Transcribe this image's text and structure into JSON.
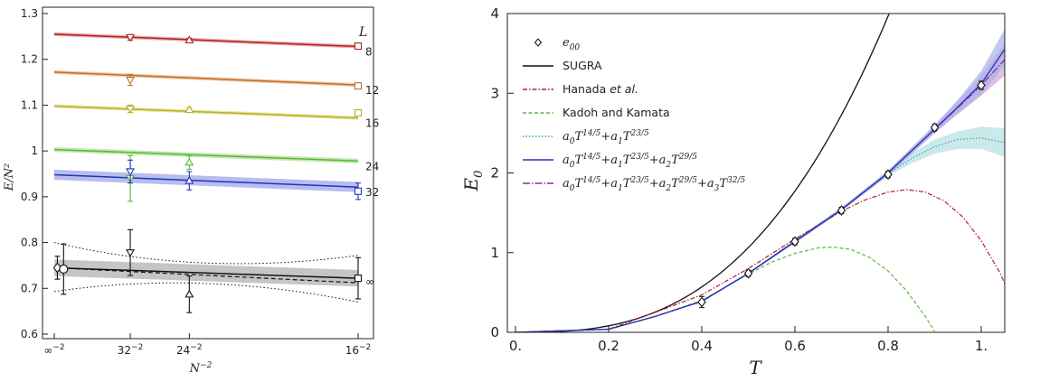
{
  "chart_data": [
    {
      "type": "line",
      "panel": "left",
      "title": "",
      "xlabel": "N−2",
      "ylabel": "E/N²",
      "xlim": [
        0,
        0.0039
      ],
      "ylim": [
        0.6,
        1.3
      ],
      "grid": false,
      "x_ticks": [
        {
          "value": 0,
          "base": "∞",
          "exp": "−2"
        },
        {
          "value": 0.000977,
          "base": "32",
          "exp": "−2"
        },
        {
          "value": 0.001736,
          "base": "24",
          "exp": "−2"
        },
        {
          "value": 0.003906,
          "base": "16",
          "exp": "−2"
        }
      ],
      "y_ticks": [
        {
          "value": 0.6,
          "label": "0.6"
        },
        {
          "value": 0.7,
          "label": "0.7"
        },
        {
          "value": 0.8,
          "label": "0.8"
        },
        {
          "value": 0.9,
          "label": "0.9"
        },
        {
          "value": 1.0,
          "label": "1"
        },
        {
          "value": 1.1,
          "label": "1.1"
        },
        {
          "value": 1.2,
          "label": "1.2"
        },
        {
          "value": 1.3,
          "label": "1.3"
        }
      ],
      "legend_title": "L",
      "series": [
        {
          "name": "8",
          "color": "#b22222",
          "band": "#e8a0a0",
          "fit": [
            1.255,
            1.228
          ],
          "halfwidth": 0.004,
          "points": [
            {
              "x": 0.000977,
              "y": 1.248,
              "err": 0.006,
              "marker": "tri-down"
            },
            {
              "x": 0.001736,
              "y": 1.242,
              "err": 0.004,
              "marker": "tri-up"
            },
            {
              "x": 0.003906,
              "y": 1.229,
              "err": 0.005,
              "marker": "square"
            }
          ]
        },
        {
          "name": "12",
          "color": "#c0702a",
          "band": "#efc09a",
          "fit": [
            1.172,
            1.144
          ],
          "halfwidth": 0.004,
          "points": [
            {
              "x": 0.000977,
              "y": 1.155,
              "err": 0.012,
              "marker": "tri-down"
            },
            {
              "x": 0.003906,
              "y": 1.142,
              "err": 0.006,
              "marker": "square"
            }
          ]
        },
        {
          "name": "16",
          "color": "#b5b025",
          "band": "#e6e39a",
          "fit": [
            1.098,
            1.072
          ],
          "halfwidth": 0.004,
          "points": [
            {
              "x": 0.000977,
              "y": 1.092,
              "err": 0.008,
              "marker": "tri-down"
            },
            {
              "x": 0.001736,
              "y": 1.09,
              "err": 0.005,
              "marker": "tri-up"
            },
            {
              "x": 0.003906,
              "y": 1.083,
              "err": 0.006,
              "marker": "square"
            }
          ]
        },
        {
          "name": "24",
          "color": "#5cb83a",
          "band": "#b8e4a0",
          "fit": [
            1.003,
            0.978
          ],
          "halfwidth": 0.005,
          "points": [
            {
              "x": 0.000977,
              "y": 0.94,
              "err": 0.05,
              "marker": "tri-down"
            },
            {
              "x": 0.001736,
              "y": 0.975,
              "err": 0.015,
              "marker": "tri-up"
            }
          ]
        },
        {
          "name": "32",
          "color": "#2233bb",
          "band": "#aab2ea",
          "fit": [
            0.948,
            0.921
          ],
          "halfwidth": 0.011,
          "points": [
            {
              "x": 0.000977,
              "y": 0.955,
              "err": 0.025,
              "marker": "tri-down"
            },
            {
              "x": 0.001736,
              "y": 0.935,
              "err": 0.02,
              "marker": "tri-up"
            },
            {
              "x": 0.003906,
              "y": 0.912,
              "err": 0.018,
              "marker": "square"
            }
          ]
        },
        {
          "name": "∞",
          "color": "#111111",
          "band": "#bbbbbb",
          "fit": [
            0.745,
            0.722
          ],
          "halfwidth": 0.018,
          "dashed_fit": [
            0.745,
            0.712
          ],
          "dotted_upper": [
            0.8,
            0.745,
            0.772
          ],
          "dotted_lower": [
            0.693,
            0.72,
            0.67
          ],
          "points": [
            {
              "x": 0.000977,
              "y": 0.778,
              "err": 0.05,
              "marker": "tri-down"
            },
            {
              "x": 0.001736,
              "y": 0.687,
              "err": 0.04,
              "marker": "tri-up"
            },
            {
              "x": 0.003906,
              "y": 0.722,
              "err": 0.045,
              "marker": "square"
            },
            {
              "x": 4e-05,
              "y": 0.745,
              "err": 0.025,
              "marker": "diamond"
            },
            {
              "x": 0.00012,
              "y": 0.742,
              "err": 0.055,
              "marker": "circle"
            }
          ]
        }
      ]
    },
    {
      "type": "line",
      "panel": "right",
      "title": "",
      "xlabel": "T",
      "ylabel": "E",
      "ylabel_sub": "0",
      "xlim": [
        0,
        1.1
      ],
      "ylim": [
        0,
        4
      ],
      "grid": false,
      "legend_position": "top-left",
      "x_ticks": [
        {
          "value": 0,
          "label": "0."
        },
        {
          "value": 0.2,
          "label": "0.2"
        },
        {
          "value": 0.4,
          "label": "0.4"
        },
        {
          "value": 0.6,
          "label": "0.6"
        },
        {
          "value": 0.8,
          "label": "0.8"
        },
        {
          "value": 1.0,
          "label": "1."
        }
      ],
      "y_ticks": [
        {
          "value": 0,
          "label": "0"
        },
        {
          "value": 1,
          "label": "1"
        },
        {
          "value": 2,
          "label": "2"
        },
        {
          "value": 3,
          "label": "3"
        },
        {
          "value": 4,
          "label": "4"
        }
      ],
      "legend": [
        {
          "key": "e00",
          "label": "e",
          "sub": "00",
          "style": "marker-diamond",
          "color": "#111111"
        },
        {
          "key": "sugra",
          "label": "SUGRA",
          "style": "solid",
          "color": "#111111"
        },
        {
          "key": "hanada",
          "label": "Hanada ",
          "label_italic": "et al.",
          "style": "dashdot",
          "color": "#b22222"
        },
        {
          "key": "kadoh",
          "label": "Kadoh and Kamata",
          "style": "dashed",
          "color": "#5cb83a"
        },
        {
          "key": "fit2",
          "terms": [
            [
              "a",
              "0",
              "14/5"
            ],
            [
              "a",
              "1",
              "23/5"
            ]
          ],
          "style": "dotted",
          "color": "#4aa0a8"
        },
        {
          "key": "fit3",
          "terms": [
            [
              "a",
              "0",
              "14/5"
            ],
            [
              "a",
              "1",
              "23/5"
            ],
            [
              "a",
              "2",
              "29/5"
            ]
          ],
          "style": "solid",
          "color": "#2233bb"
        },
        {
          "key": "fit4",
          "terms": [
            [
              "a",
              "0",
              "14/5"
            ],
            [
              "a",
              "1",
              "23/5"
            ],
            [
              "a",
              "2",
              "29/5"
            ],
            [
              "a",
              "3",
              "32/5"
            ]
          ],
          "style": "longdash",
          "color": "#8a2f9a"
        }
      ],
      "data_points": [
        {
          "T": 0.4,
          "E": 0.38,
          "err": 0.07
        },
        {
          "T": 0.5,
          "E": 0.74,
          "err": 0.04
        },
        {
          "T": 0.6,
          "E": 1.14,
          "err": 0.04
        },
        {
          "T": 0.7,
          "E": 1.53,
          "err": 0.04
        },
        {
          "T": 0.8,
          "E": 1.98,
          "err": 0.04
        },
        {
          "T": 0.9,
          "E": 2.57,
          "err": 0.04
        },
        {
          "T": 1.0,
          "E": 3.1,
          "err": 0.05
        }
      ],
      "curves": {
        "sugra": {
          "model": "power",
          "coef": 7.41,
          "exp": 2.8
        },
        "fit2": {
          "T": [
            0.3,
            0.4,
            0.5,
            0.6,
            0.7,
            0.8,
            0.85,
            0.9,
            0.95,
            1.0,
            1.05,
            1.1
          ],
          "E": [
            0.2,
            0.39,
            0.74,
            1.14,
            1.55,
            1.99,
            2.18,
            2.33,
            2.42,
            2.44,
            2.38,
            2.22
          ],
          "upper": [
            0.2,
            0.4,
            0.75,
            1.16,
            1.57,
            2.02,
            2.24,
            2.42,
            2.52,
            2.58,
            2.56,
            2.48
          ],
          "lower": [
            0.2,
            0.38,
            0.73,
            1.12,
            1.53,
            1.96,
            2.12,
            2.24,
            2.3,
            2.3,
            2.2,
            1.95
          ]
        },
        "fit3": {
          "T": [
            0.3,
            0.4,
            0.5,
            0.6,
            0.7,
            0.8,
            0.9,
            0.95,
            1.0,
            1.05,
            1.09
          ],
          "E": [
            0.2,
            0.39,
            0.74,
            1.14,
            1.54,
            2.0,
            2.55,
            2.83,
            3.12,
            3.55,
            3.98
          ],
          "upper": [
            0.2,
            0.4,
            0.75,
            1.16,
            1.56,
            2.03,
            2.6,
            2.92,
            3.28,
            3.8,
            4.2
          ],
          "lower": [
            0.2,
            0.38,
            0.73,
            1.12,
            1.52,
            1.97,
            2.5,
            2.75,
            2.98,
            3.35,
            3.65
          ]
        },
        "fit4": {
          "T": [
            0.3,
            0.4,
            0.5,
            0.6,
            0.7,
            0.8,
            0.9,
            0.95,
            1.0,
            1.05,
            1.1
          ],
          "E": [
            0.2,
            0.39,
            0.74,
            1.14,
            1.54,
            2.0,
            2.55,
            2.82,
            3.1,
            3.42,
            3.75
          ],
          "upper": [
            0.2,
            0.4,
            0.75,
            1.16,
            1.56,
            2.03,
            2.6,
            2.9,
            3.23,
            3.62,
            4.05
          ],
          "lower": [
            0.2,
            0.38,
            0.73,
            1.12,
            1.52,
            1.97,
            2.5,
            2.74,
            2.97,
            3.22,
            3.45
          ]
        },
        "hanada": {
          "T": [
            0.3,
            0.4,
            0.5,
            0.6,
            0.7,
            0.75,
            0.8,
            0.84,
            0.88,
            0.92,
            0.96,
            1.0,
            1.04,
            1.08,
            1.095
          ],
          "E": [
            0.25,
            0.47,
            0.8,
            1.17,
            1.52,
            1.66,
            1.76,
            1.79,
            1.76,
            1.65,
            1.45,
            1.15,
            0.75,
            0.22,
            0.0
          ]
        },
        "kadoh": {
          "T": [
            0.3,
            0.4,
            0.5,
            0.55,
            0.6,
            0.65,
            0.68,
            0.72,
            0.76,
            0.8,
            0.84,
            0.88,
            0.9
          ],
          "E": [
            0.2,
            0.4,
            0.73,
            0.88,
            0.99,
            1.06,
            1.07,
            1.04,
            0.94,
            0.77,
            0.52,
            0.2,
            0.01
          ]
        }
      }
    }
  ]
}
